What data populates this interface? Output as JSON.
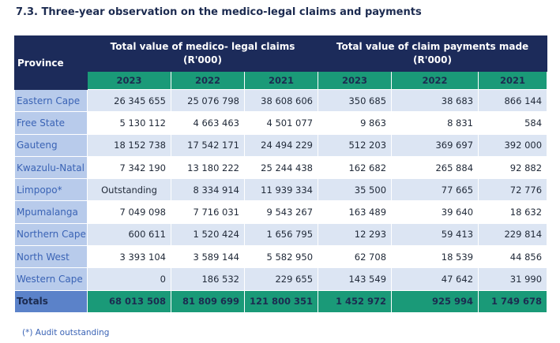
{
  "title": "7.3. Three-year observation on the medico-legal claims and payments",
  "table": {
    "province_header": "Province",
    "claims_header_line1": "Total value of medico- legal claims",
    "claims_header_line2": "(R'000)",
    "payments_header_line1": "Total value of claim payments made",
    "payments_header_line2": "(R'000)",
    "years": [
      "2023",
      "2022",
      "2021",
      "2023",
      "2022",
      "2021"
    ],
    "rows": [
      {
        "province": "Eastern Cape",
        "values": [
          "26 345 655",
          "25 076 798",
          "38 608 606",
          "350 685",
          "38 683",
          "866 144"
        ]
      },
      {
        "province": "Free State",
        "values": [
          "5 130 112",
          "4 663 463",
          "4 501 077",
          "9 863",
          "8 831",
          "584"
        ]
      },
      {
        "province": "Gauteng",
        "values": [
          "18 152 738",
          "17 542 171",
          "24 494 229",
          "512 203",
          "369 697",
          "392 000"
        ]
      },
      {
        "province": "Kwazulu-Natal",
        "values": [
          "7 342 190",
          "13 180 222",
          "25 244 438",
          "162 682",
          "265 884",
          "92 882"
        ]
      },
      {
        "province": "Limpopo*",
        "values": [
          "Outstanding",
          "8 334 914",
          "11 939 334",
          "35 500",
          "77 665",
          "72 776"
        ]
      },
      {
        "province": "Mpumalanga",
        "values": [
          "7 049 098",
          "7 716 031",
          "9 543 267",
          "163 489",
          "39 640",
          "18 632"
        ]
      },
      {
        "province": "Northern Cape",
        "values": [
          "600 611",
          "1 520 424",
          "1 656 795",
          "12 293",
          "59 413",
          "229 814"
        ]
      },
      {
        "province": "North West",
        "values": [
          "3 393 104",
          "3 589 144",
          "5 582 950",
          "62 708",
          "18 539",
          "44 856"
        ]
      },
      {
        "province": "Western Cape",
        "values": [
          "0",
          "186 532",
          "229 655",
          "143 549",
          "47 642",
          "31 990"
        ]
      }
    ],
    "totals": {
      "label": "Totals",
      "values": [
        "68 013 508",
        "81 809 699",
        "121 800 351",
        "1 452 972",
        "925 994",
        "1 749 678"
      ]
    }
  },
  "footnote": "(*) Audit outstanding"
}
